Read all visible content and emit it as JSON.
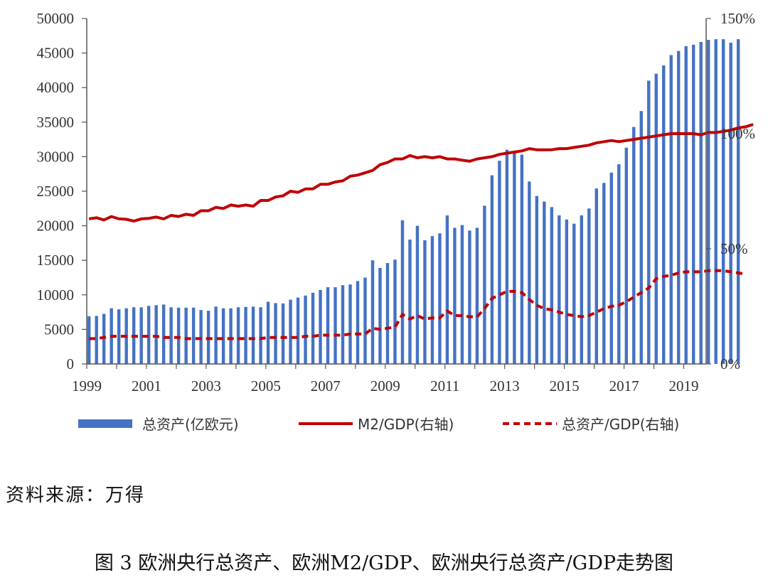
{
  "chart_data": {
    "type": "bar+line",
    "x_tick_labels": [
      "1999",
      "2001",
      "2003",
      "2005",
      "2007",
      "2009",
      "2011",
      "2013",
      "2015",
      "2017",
      "2019"
    ],
    "x_range": [
      1999,
      2019.75
    ],
    "x_step": 0.25,
    "y_left": {
      "range": [
        0,
        50000
      ],
      "ticks": [
        "0",
        "5000",
        "10000",
        "15000",
        "20000",
        "25000",
        "30000",
        "35000",
        "40000",
        "45000",
        "50000"
      ]
    },
    "y_right": {
      "range": [
        0,
        150
      ],
      "ticks": [
        "0%",
        "50%",
        "100%",
        "150%"
      ]
    },
    "series": [
      {
        "name": "总资产(亿欧元)",
        "type": "bar",
        "axis": "left",
        "color": "#4472c4",
        "values": [
          6900,
          6950,
          7250,
          8050,
          7900,
          8050,
          8200,
          8200,
          8400,
          8500,
          8600,
          8200,
          8150,
          8150,
          8150,
          7800,
          7700,
          8300,
          8050,
          8050,
          8200,
          8250,
          8300,
          8200,
          9000,
          8800,
          8750,
          9300,
          9600,
          9900,
          10300,
          10700,
          11100,
          11100,
          11400,
          11500,
          12000,
          12500,
          15000,
          13900,
          14600,
          15100,
          20800,
          18000,
          20000,
          17900,
          18500,
          18900,
          21500,
          19700,
          20100,
          19300,
          19700,
          22900,
          27300,
          29400,
          31000,
          30800,
          30300,
          26400,
          24300,
          23500,
          22700,
          21500,
          20900,
          20300,
          21500,
          22500,
          25400,
          26200,
          27700,
          28900,
          31300,
          34300,
          36600,
          41000,
          42000,
          43200,
          44700,
          45300,
          46000,
          46200,
          46600,
          46900,
          47000,
          47000,
          46500,
          47000
        ]
      },
      {
        "name": "M2/GDP(右轴)",
        "type": "line",
        "axis": "right",
        "color": "#c00000",
        "dash": false,
        "values": [
          63,
          63.5,
          62.5,
          64,
          63,
          62.8,
          62,
          63,
          63.2,
          63.8,
          63,
          64.5,
          64,
          65,
          64.5,
          66.5,
          66.5,
          68,
          67.5,
          69,
          68.5,
          69,
          68.5,
          71,
          71,
          72.5,
          73,
          75,
          74.5,
          76,
          76,
          78,
          78,
          79,
          79.5,
          81.5,
          82,
          83,
          84,
          86.5,
          87.5,
          89,
          89,
          90.5,
          89.5,
          90,
          89.5,
          90,
          89,
          89,
          88.5,
          88,
          89,
          89.5,
          90,
          91,
          91.5,
          92,
          92.5,
          93.5,
          93,
          93,
          93,
          93.5,
          93.5,
          94,
          94.5,
          95,
          96,
          96.5,
          97,
          96.5,
          97,
          97.5,
          98,
          98.5,
          99,
          99.5,
          100,
          100,
          100,
          100,
          99.5,
          100.5,
          100.5,
          101,
          101.5,
          102.5,
          103,
          104
        ]
      },
      {
        "name": "总资产/GDP(右轴)",
        "type": "line",
        "axis": "right",
        "color": "#c00000",
        "dash": true,
        "values": [
          11,
          11,
          11.5,
          12,
          12,
          12,
          12,
          12,
          12,
          12,
          11.5,
          11.5,
          11.5,
          11,
          11,
          11,
          11,
          11,
          11,
          11,
          11,
          11,
          11,
          11,
          11.5,
          11.5,
          11.5,
          11.5,
          11.5,
          12,
          12,
          12.5,
          12.5,
          12.5,
          12.5,
          13,
          13,
          13,
          15.5,
          15,
          15.5,
          16,
          21.5,
          19.5,
          21,
          19.5,
          20,
          20,
          23,
          21,
          21,
          20.5,
          20.5,
          24,
          28.5,
          30,
          31.5,
          31.5,
          31,
          28,
          25.5,
          24,
          23.5,
          22.5,
          21.5,
          21,
          20.5,
          21,
          22.5,
          24,
          25,
          25.5,
          27,
          29,
          31,
          33,
          37,
          38,
          38.5,
          39.5,
          40,
          40,
          40,
          40.5,
          40.5,
          40.5,
          40,
          39.5,
          39
        ]
      }
    ],
    "legend_position": "bottom"
  },
  "legend": [
    {
      "label": "总资产(亿欧元)"
    },
    {
      "label": "M2/GDP(右轴)"
    },
    {
      "label": "总资产/GDP(右轴)"
    }
  ],
  "source_note": "资料来源：万得",
  "caption": "图 3 欧洲央行总资产、欧洲M2/GDP、欧洲央行总资产/GDP走势图"
}
